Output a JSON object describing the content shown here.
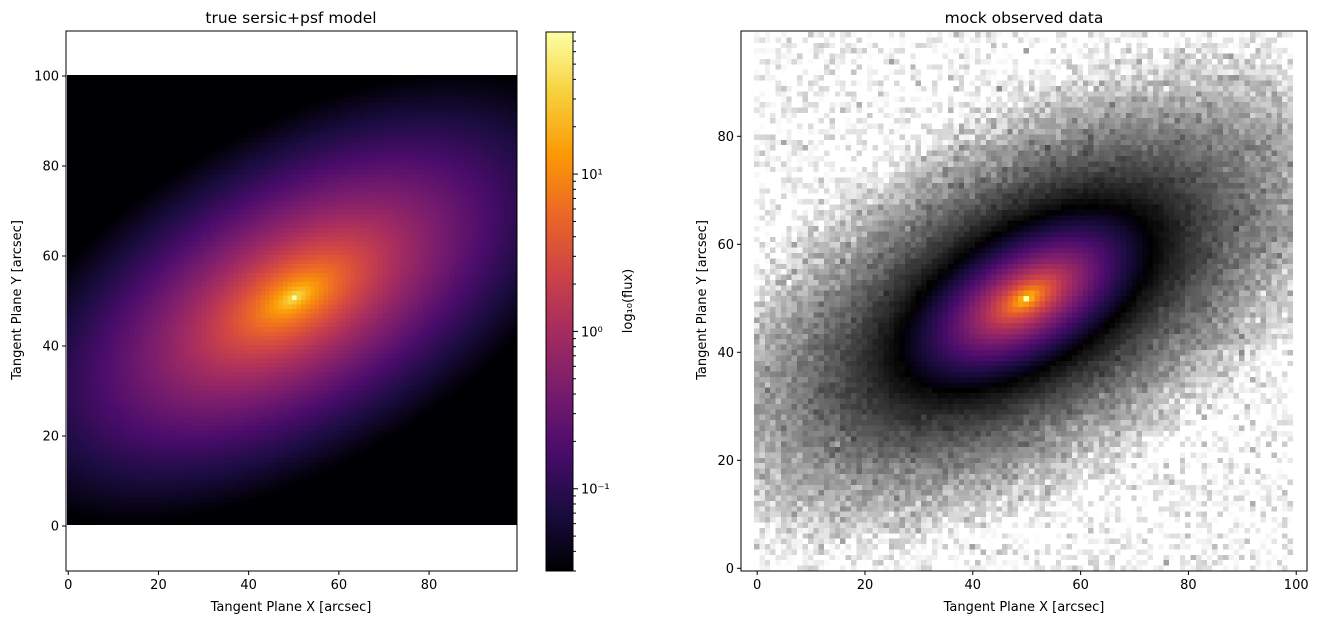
{
  "colors": {
    "inferno_stops": [
      "#000004",
      "#1b0c41",
      "#4a0c6b",
      "#781c6d",
      "#a52c60",
      "#cf4446",
      "#ed6925",
      "#fb9b06",
      "#f7d13d",
      "#fcffa4"
    ],
    "gray_low": "#000000",
    "gray_high": "#ffffff",
    "background": "#ffffff"
  },
  "chart_data": [
    {
      "type": "heatmap",
      "title": "true sersic+psf model",
      "xlabel": "Tangent Plane X [arcsec]",
      "ylabel": "Tangent Plane Y [arcsec]",
      "xlim": [
        -0.5,
        99.5
      ],
      "ylim": [
        -10,
        110
      ],
      "extent": {
        "x": [
          -0.5,
          99.5
        ],
        "y": [
          -0.5,
          99.5
        ]
      },
      "xticks": [
        0,
        20,
        40,
        60,
        80
      ],
      "yticks": [
        0,
        20,
        40,
        60,
        80,
        100
      ],
      "colormap": "inferno",
      "model": {
        "center": [
          50,
          50
        ],
        "peak_flux": 80,
        "min_flux": 0.03,
        "position_angle_deg": 30,
        "axis_ratio": 0.5,
        "effective_radius": 25
      },
      "colorbar": {
        "label": "log₁₀(flux)",
        "scale": "log",
        "range": [
          0.03,
          80
        ],
        "ticks": [
          0.1,
          1,
          10
        ],
        "tick_labels": [
          "10⁻¹",
          "10⁰",
          "10¹"
        ]
      },
      "grid": false
    },
    {
      "type": "heatmap",
      "title": "mock observed data",
      "xlabel": "Tangent Plane X [arcsec]",
      "ylabel": "Tangent Plane Y [arcsec]",
      "xlim": [
        -3,
        102
      ],
      "ylim": [
        -0.5,
        99.5
      ],
      "extent": {
        "x": [
          -0.5,
          99.5
        ],
        "y": [
          -0.5,
          99.5
        ]
      },
      "xticks": [
        0,
        20,
        40,
        60,
        80,
        100
      ],
      "yticks": [
        0,
        20,
        40,
        60,
        80
      ],
      "colormap": "gray_r over inferno",
      "inferno_threshold_flux": 1.0,
      "grid": false
    }
  ]
}
